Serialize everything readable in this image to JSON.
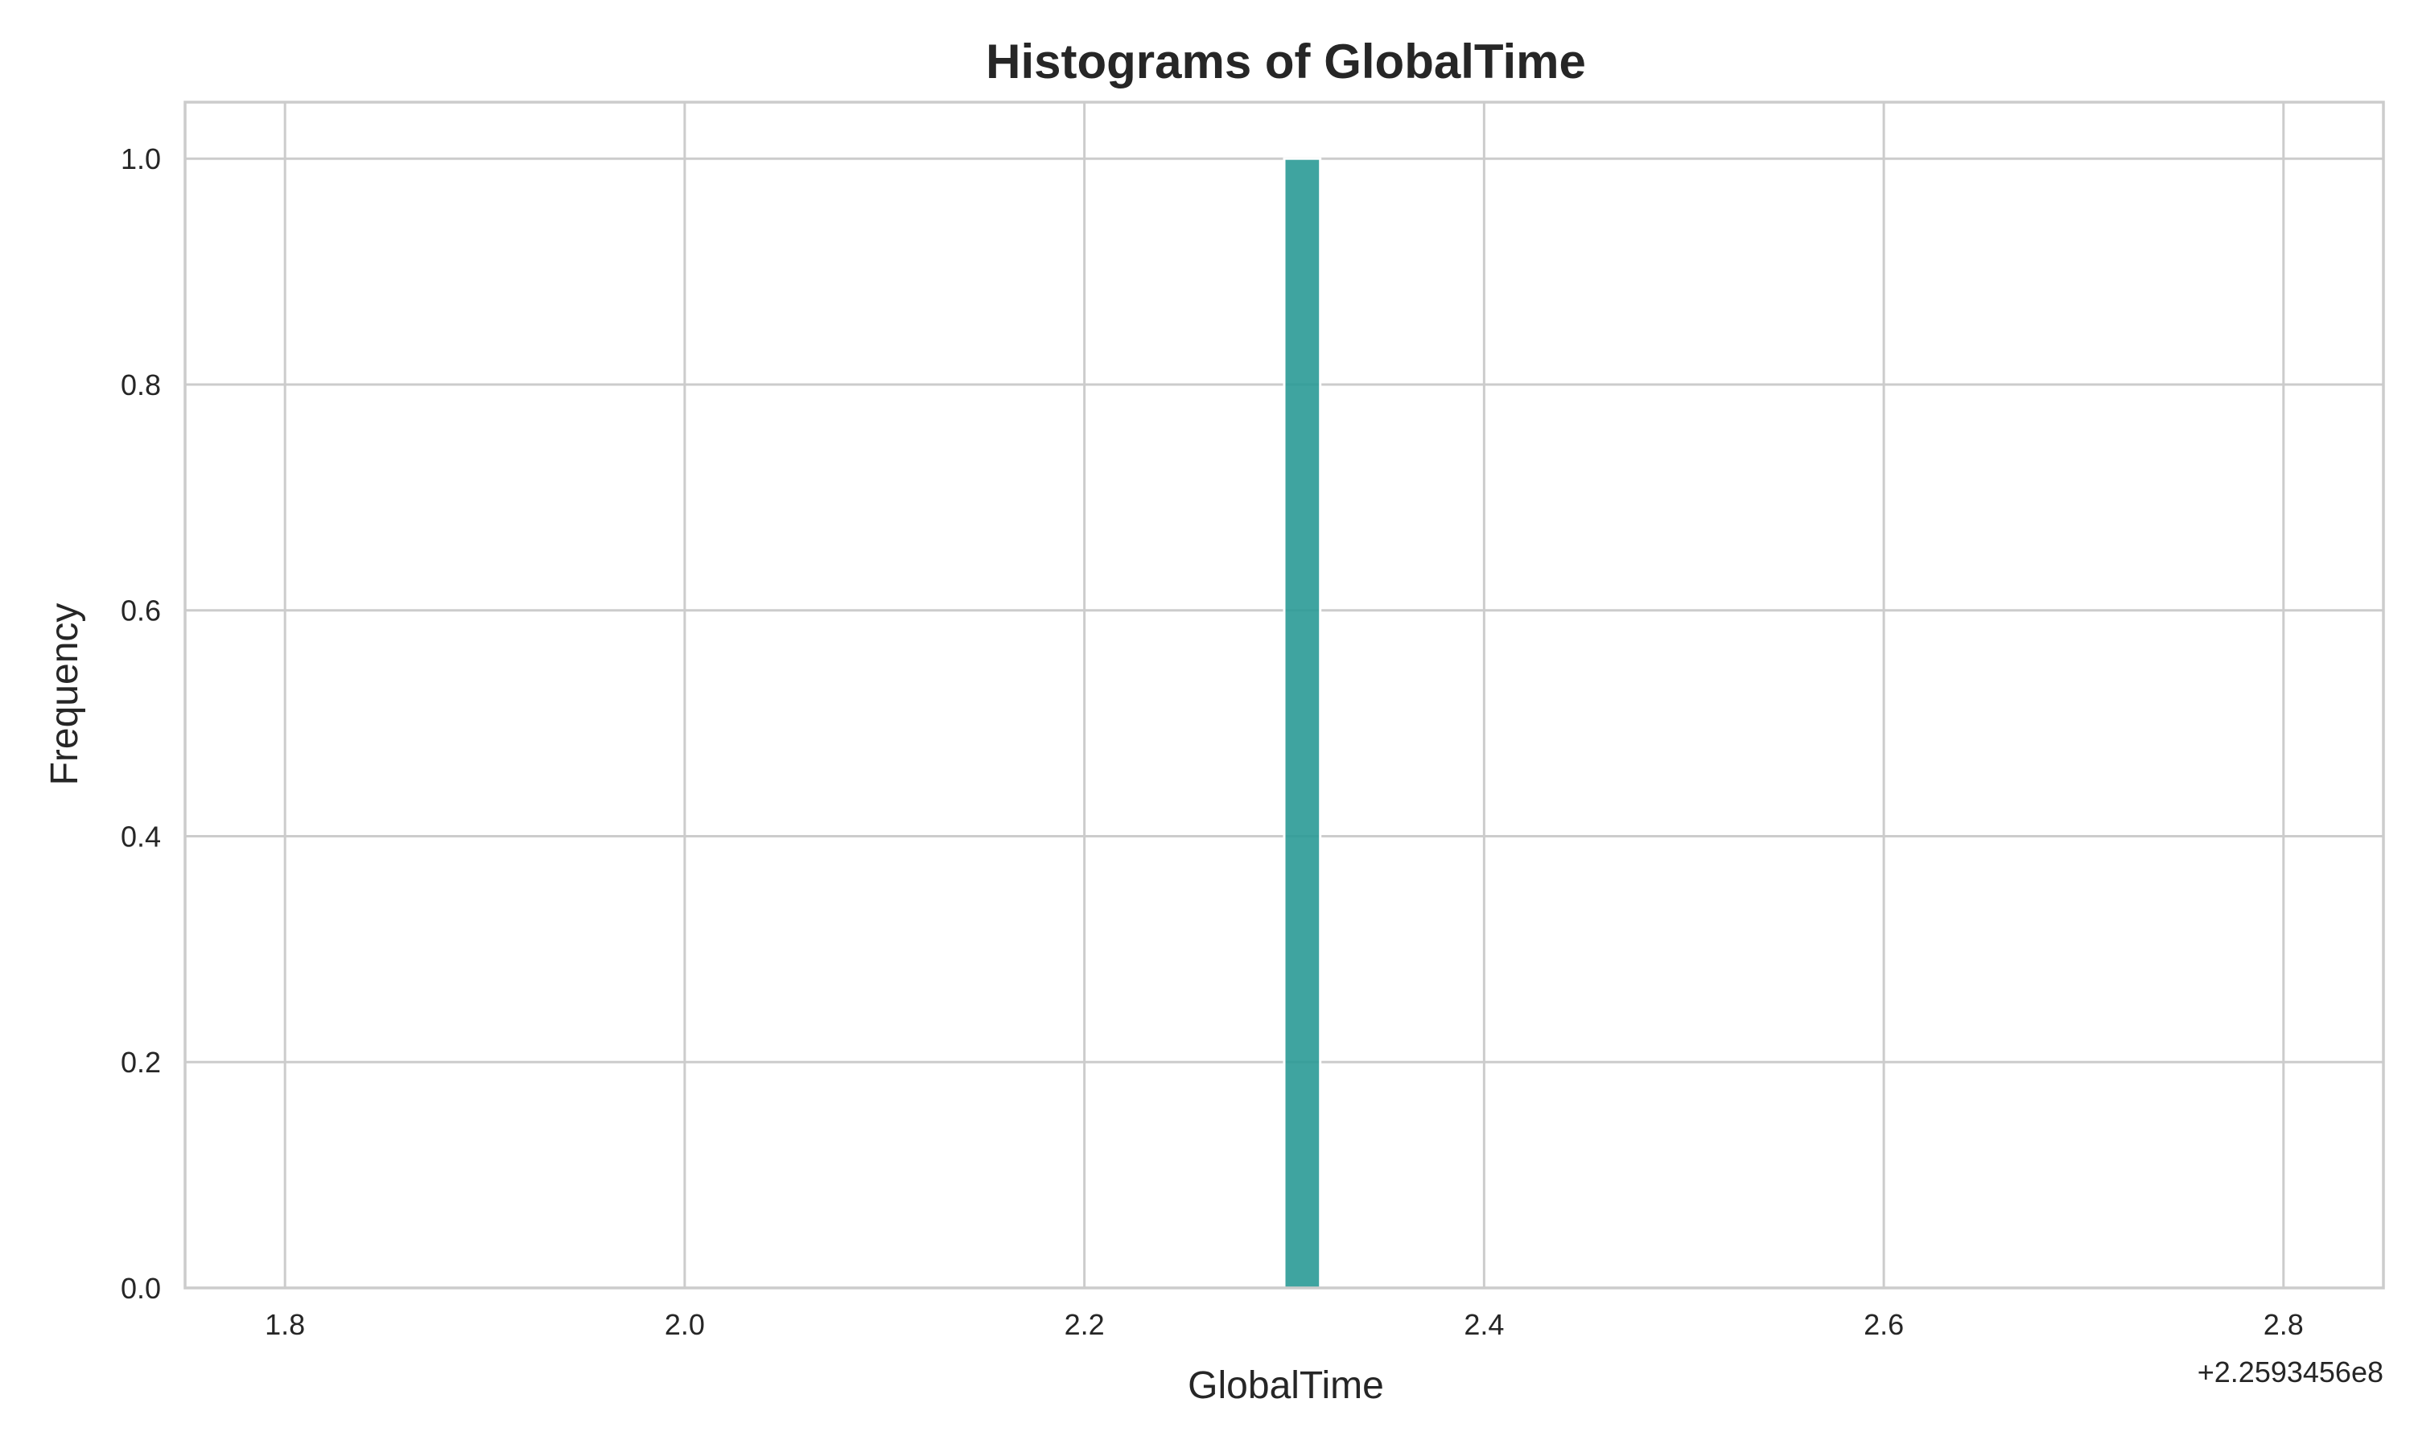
{
  "chart_data": {
    "type": "bar",
    "title": "Histograms of GlobalTime",
    "xlabel": "GlobalTime",
    "ylabel": "Frequency",
    "x_offset_label": "+2.2593456e8",
    "xlim": [
      1.75,
      2.85
    ],
    "ylim": [
      0,
      1.05
    ],
    "x_ticks": [
      1.8,
      2.0,
      2.2,
      2.4,
      2.6,
      2.8
    ],
    "x_tick_labels": [
      "1.8",
      "2.0",
      "2.2",
      "2.4",
      "2.6",
      "2.8"
    ],
    "y_ticks": [
      0.0,
      0.2,
      0.4,
      0.6,
      0.8,
      1.0
    ],
    "y_tick_labels": [
      "0.0",
      "0.2",
      "0.4",
      "0.6",
      "0.8",
      "1.0"
    ],
    "grid": true,
    "bins": [
      {
        "x_start": 2.3,
        "x_end": 2.318,
        "count": 1
      }
    ],
    "colors": {
      "bar": "#2a9a96",
      "bar_edge": "#ffffff",
      "grid": "#cccccc",
      "frame": "#cccccc",
      "text": "#262626"
    }
  }
}
